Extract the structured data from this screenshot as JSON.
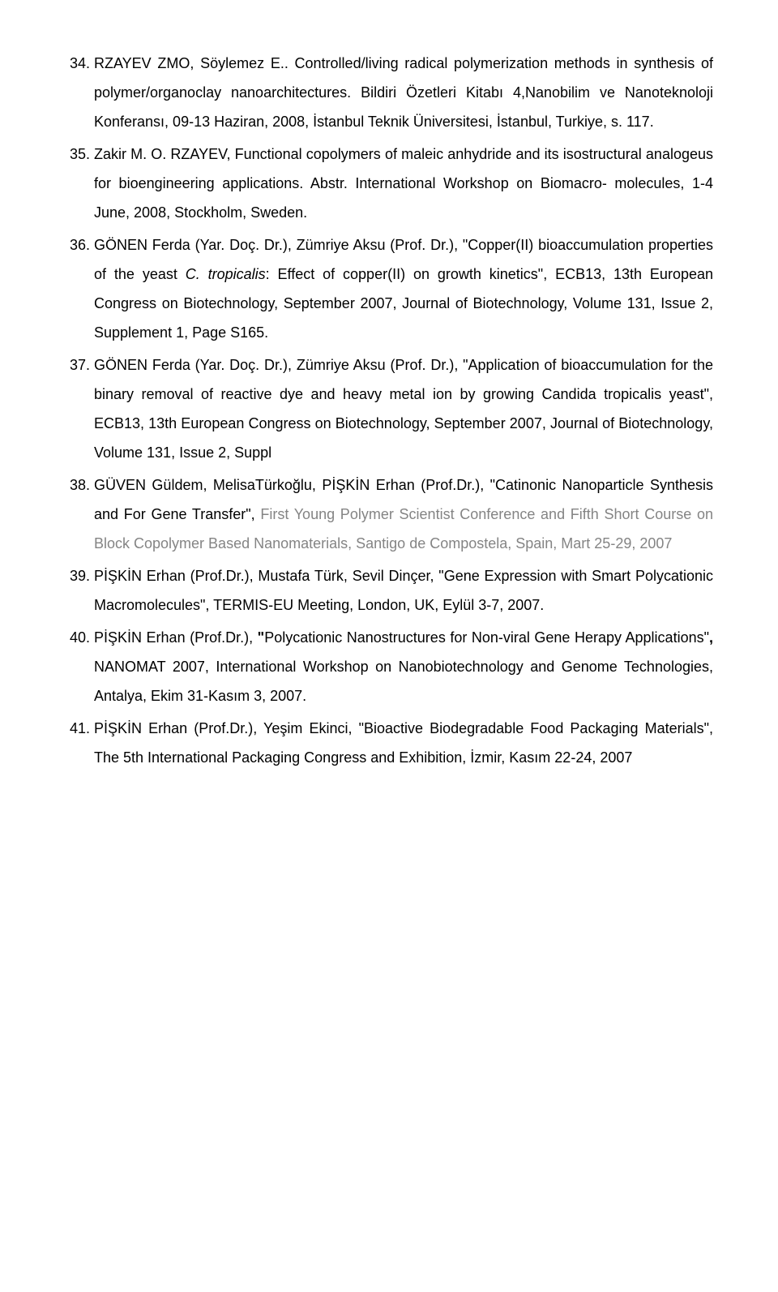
{
  "list_start": 34,
  "items": [
    {
      "name": "ref-34",
      "segments": [
        {
          "text": "RZAYEV ZMO, Söylemez E.. Controlled/living radical polymerization methods in synthesis of polymer/organoclay nanoarchitectures. Bildiri Özetleri Kitabı 4,Nanobilim ve Nanoteknoloji Konferansı, 09-13 Haziran, 2008, İstanbul Teknik Üniversitesi, İstanbul, Turkiye, s. 117."
        }
      ]
    },
    {
      "name": "ref-35",
      "segments": [
        {
          "text": "Zakir M. O. RZAYEV, Functional copolymers of maleic anhydride and its isostructural analogeus for bioengineering applications. Abstr. International Workshop on Biomacro- molecules, 1-4 June, 2008, Stockholm, Sweden."
        }
      ]
    },
    {
      "name": "ref-36",
      "segments": [
        {
          "text": "GÖNEN Ferda (Yar. Doç. Dr.), Zümriye Aksu (Prof. Dr.), \"Copper(II) bioaccumulation properties of the yeast "
        },
        {
          "text": "C. tropicalis",
          "italic": true
        },
        {
          "text": ": Effect of copper(II) on growth kinetics\", ECB13, 13th European Congress on Biotechnology, September 2007, Journal of Biotechnology, Volume 131, Issue 2, Supplement 1, Page S165."
        }
      ]
    },
    {
      "name": "ref-37",
      "segments": [
        {
          "text": "GÖNEN Ferda (Yar. Doç. Dr.), Zümriye Aksu (Prof. Dr.), \"Application of bioaccumulation for the binary removal of reactive dye and heavy metal ion by growing Candida tropicalis yeast\", ECB13, 13th European Congress on Biotechnology, September 2007, Journal of Biotechnology, Volume 131, Issue 2, Suppl"
        }
      ]
    },
    {
      "name": "ref-38",
      "segments": [
        {
          "text": "GÜVEN Güldem, MelisaTürkoğlu, PİŞKİN Erhan (Prof.Dr.), \"Catinonic Nanoparticle Synthesis and For Gene Transfer\", "
        },
        {
          "text": "First Young Polymer Scientist Conference and Fifth Short Course on Block Copolymer Based Nanomaterials, Santigo de Compostela, Spain, Mart 25-29, 2007",
          "gray": true
        }
      ]
    },
    {
      "name": "ref-39",
      "segments": [
        {
          "text": "PİŞKİN Erhan (Prof.Dr.), Mustafa Türk, Sevil Dinçer, \"Gene Expression with Smart Polycationic Macromolecules\", TERMIS-EU Meeting, London, UK, Eylül 3-7, 2007."
        }
      ]
    },
    {
      "name": "ref-40",
      "segments": [
        {
          "text": "PİŞKİN Erhan (Prof.Dr.), "
        },
        {
          "text": "\"",
          "bold": true
        },
        {
          "text": "Polycationic Nanostructures for Non-viral Gene Herapy Applications\""
        },
        {
          "text": ", ",
          "bold": true
        },
        {
          "text": "NANOMAT 2007, International Workshop on Nanobiotechnology and Genome Technologies, Antalya, Ekim 31-Kasım 3, 2007."
        }
      ]
    },
    {
      "name": "ref-41",
      "segments": [
        {
          "text": "PİŞKİN Erhan (Prof.Dr.), Yeşim Ekinci, \"Bioactive Biodegradable Food Packaging Materials\", The 5th International Packaging Congress and Exhibition, İzmir, Kasım 22-24, 2007"
        }
      ]
    }
  ]
}
